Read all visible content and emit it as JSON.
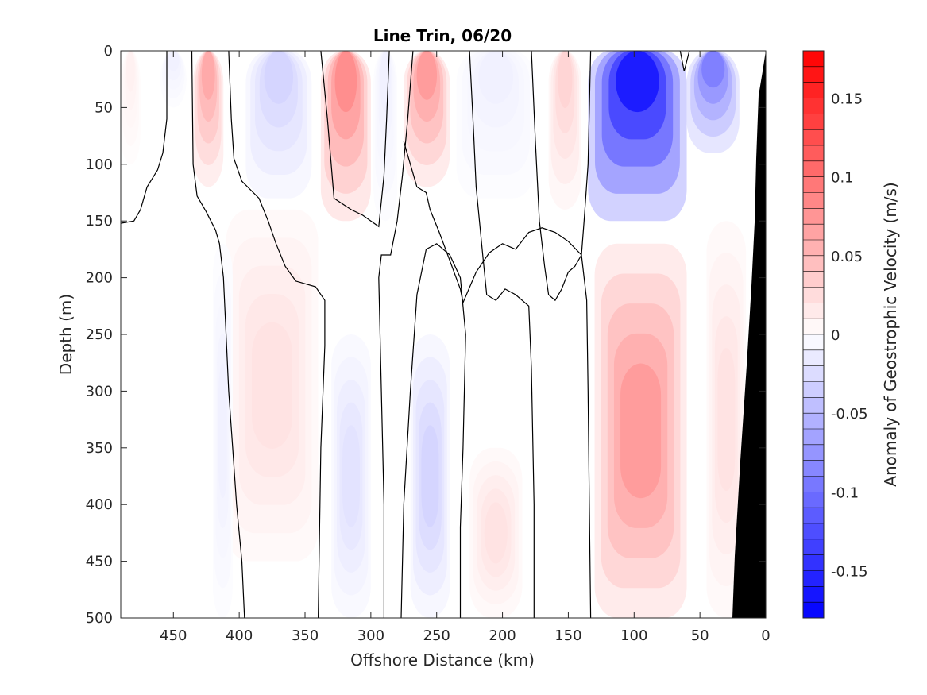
{
  "chart_data": {
    "type": "heatmap",
    "title": "Line Trin, 06/20",
    "xlabel": "Offshore Distance (km)",
    "ylabel": "Depth (m)",
    "xlim": [
      490,
      0
    ],
    "ylim": [
      0,
      500
    ],
    "x_reversed": true,
    "y_reversed": true,
    "x_ticks": [
      450,
      400,
      350,
      300,
      250,
      200,
      150,
      100,
      50,
      0
    ],
    "y_ticks": [
      0,
      50,
      100,
      150,
      200,
      250,
      300,
      350,
      400,
      450,
      500
    ],
    "colorbar": {
      "label": "Anomaly of Geostrophic Velocity (m/s)",
      "limits": [
        -0.18,
        0.18
      ],
      "levels": 36,
      "ticks": [
        -0.15,
        -0.1,
        -0.05,
        0,
        0.05,
        0.1,
        0.15
      ],
      "tick_labels": [
        "-0.15",
        "-0.1",
        "-0.05",
        "0",
        "0.05",
        "0.1",
        "0.15"
      ],
      "colormap": "blue-white-red"
    },
    "features": [
      {
        "x_range": [
          490,
          475
        ],
        "depth_range": [
          0,
          100
        ],
        "value": 0.01
      },
      {
        "x_range": [
          460,
          440
        ],
        "depth_range": [
          0,
          50
        ],
        "value": -0.01
      },
      {
        "x_range": [
          435,
          412
        ],
        "depth_range": [
          0,
          120
        ],
        "value": 0.06
      },
      {
        "x_range": [
          395,
          345
        ],
        "depth_range": [
          0,
          130
        ],
        "value": -0.03
      },
      {
        "x_range": [
          338,
          300
        ],
        "depth_range": [
          0,
          150
        ],
        "value": 0.08
      },
      {
        "x_range": [
          298,
          280
        ],
        "depth_range": [
          0,
          150
        ],
        "value": -0.01
      },
      {
        "x_range": [
          275,
          240
        ],
        "depth_range": [
          0,
          120
        ],
        "value": 0.07
      },
      {
        "x_range": [
          235,
          175
        ],
        "depth_range": [
          0,
          130
        ],
        "value": -0.01
      },
      {
        "x_range": [
          165,
          140
        ],
        "depth_range": [
          0,
          140
        ],
        "value": 0.03
      },
      {
        "x_range": [
          135,
          60
        ],
        "depth_range": [
          0,
          150
        ],
        "value": -0.16
      },
      {
        "x_range": [
          60,
          20
        ],
        "depth_range": [
          0,
          90
        ],
        "value": -0.09
      },
      {
        "x_range": [
          410,
          340
        ],
        "depth_range": [
          140,
          450
        ],
        "value": 0.02
      },
      {
        "x_range": [
          420,
          405
        ],
        "depth_range": [
          170,
          500
        ],
        "value": -0.01
      },
      {
        "x_range": [
          330,
          300
        ],
        "depth_range": [
          250,
          500
        ],
        "value": -0.02
      },
      {
        "x_range": [
          270,
          240
        ],
        "depth_range": [
          250,
          500
        ],
        "value": -0.03
      },
      {
        "x_range": [
          225,
          185
        ],
        "depth_range": [
          350,
          500
        ],
        "value": 0.02
      },
      {
        "x_range": [
          130,
          60
        ],
        "depth_range": [
          170,
          500
        ],
        "value": 0.07
      },
      {
        "x_range": [
          45,
          15
        ],
        "depth_range": [
          150,
          500
        ],
        "value": 0.02
      }
    ],
    "contour_zero": [
      {
        "points": [
          [
            490,
            152
          ],
          [
            480,
            150
          ],
          [
            475,
            140
          ],
          [
            470,
            120
          ],
          [
            462,
            105
          ],
          [
            458,
            90
          ],
          [
            455,
            60
          ],
          [
            455,
            0
          ]
        ]
      },
      {
        "points": [
          [
            436,
            0
          ],
          [
            435,
            100
          ],
          [
            432,
            128
          ],
          [
            425,
            142
          ],
          [
            418,
            158
          ],
          [
            415,
            170
          ],
          [
            412,
            200
          ],
          [
            410,
            250
          ],
          [
            408,
            300
          ],
          [
            405,
            350
          ],
          [
            402,
            400
          ],
          [
            398,
            450
          ],
          [
            396,
            500
          ]
        ]
      },
      {
        "points": [
          [
            408,
            0
          ],
          [
            406,
            60
          ],
          [
            404,
            95
          ],
          [
            398,
            115
          ],
          [
            385,
            130
          ],
          [
            378,
            150
          ],
          [
            372,
            170
          ],
          [
            365,
            190
          ],
          [
            357,
            203
          ],
          [
            342,
            208
          ],
          [
            335,
            220
          ],
          [
            335,
            260
          ],
          [
            338,
            350
          ],
          [
            340,
            500
          ]
        ]
      },
      {
        "points": [
          [
            338,
            0
          ],
          [
            333,
            60
          ],
          [
            328,
            130
          ],
          [
            315,
            140
          ],
          [
            306,
            145
          ],
          [
            300,
            150
          ],
          [
            294,
            155
          ],
          [
            290,
            110
          ],
          [
            288,
            60
          ],
          [
            286,
            0
          ]
        ]
      },
      {
        "points": [
          [
            268,
            0
          ],
          [
            272,
            60
          ],
          [
            276,
            110
          ],
          [
            280,
            150
          ],
          [
            285,
            180
          ],
          [
            292,
            180
          ],
          [
            294,
            200
          ],
          [
            292,
            300
          ],
          [
            290,
            400
          ],
          [
            290,
            500
          ]
        ]
      },
      {
        "points": [
          [
            277,
            500
          ],
          [
            275,
            400
          ],
          [
            270,
            300
          ],
          [
            265,
            215
          ],
          [
            258,
            175
          ],
          [
            250,
            170
          ],
          [
            240,
            180
          ],
          [
            232,
            200
          ],
          [
            228,
            250
          ],
          [
            230,
            350
          ],
          [
            232,
            420
          ],
          [
            232,
            500
          ]
        ]
      },
      {
        "points": [
          [
            225,
            0
          ],
          [
            222,
            70
          ],
          [
            220,
            120
          ],
          [
            215,
            180
          ],
          [
            212,
            215
          ],
          [
            205,
            220
          ],
          [
            198,
            210
          ],
          [
            190,
            215
          ],
          [
            180,
            225
          ],
          [
            178,
            280
          ],
          [
            176,
            400
          ],
          [
            176,
            500
          ]
        ]
      },
      {
        "points": [
          [
            178,
            0
          ],
          [
            175,
            80
          ],
          [
            172,
            150
          ],
          [
            168,
            190
          ],
          [
            165,
            215
          ],
          [
            160,
            220
          ],
          [
            155,
            210
          ],
          [
            150,
            195
          ],
          [
            145,
            190
          ],
          [
            140,
            180
          ],
          [
            138,
            150
          ],
          [
            135,
            100
          ],
          [
            133,
            0
          ]
        ]
      },
      {
        "points": [
          [
            133,
            500
          ],
          [
            134,
            400
          ],
          [
            135,
            300
          ],
          [
            136,
            220
          ],
          [
            140,
            180
          ],
          [
            150,
            168
          ],
          [
            160,
            160
          ],
          [
            170,
            156
          ],
          [
            180,
            160
          ],
          [
            190,
            175
          ],
          [
            200,
            170
          ],
          [
            210,
            178
          ],
          [
            220,
            195
          ],
          [
            230,
            222
          ],
          [
            232,
            210
          ],
          [
            240,
            185
          ],
          [
            248,
            160
          ],
          [
            255,
            140
          ],
          [
            258,
            125
          ],
          [
            265,
            120
          ],
          [
            270,
            100
          ],
          [
            275,
            80
          ]
        ]
      },
      {
        "points": [
          [
            58,
            0
          ],
          [
            62,
            18
          ],
          [
            65,
            0
          ]
        ]
      }
    ]
  }
}
